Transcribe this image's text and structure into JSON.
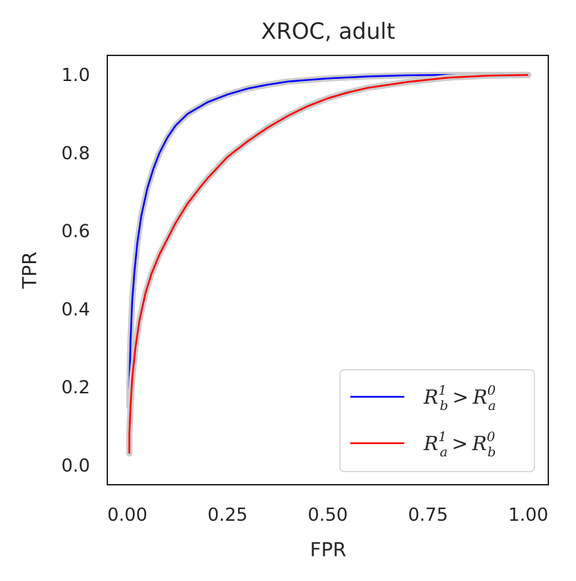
{
  "chart_data": {
    "type": "line",
    "title": "XROC, adult",
    "xlabel": "FPR",
    "ylabel": "TPR",
    "xlim": [
      -0.05,
      1.05
    ],
    "ylim": [
      -0.05,
      1.05
    ],
    "x_ticks": [
      "0.00",
      "0.25",
      "0.50",
      "0.75",
      "1.00"
    ],
    "y_ticks": [
      "0.0",
      "0.2",
      "0.4",
      "0.6",
      "0.8",
      "1.0"
    ],
    "grid": false,
    "legend_position": "lower-right",
    "confidence_band_color": "#cccccc",
    "series": [
      {
        "name": "R_b^1 > R_a^0",
        "label_parts": {
          "R1": "R",
          "sup1": "1",
          "sub1": "b",
          "op": ">",
          "R2": "R",
          "sup2": "0",
          "sub2": "a"
        },
        "color": "#0000ff",
        "x": [
          0.005,
          0.005,
          0.008,
          0.012,
          0.018,
          0.025,
          0.035,
          0.05,
          0.065,
          0.08,
          0.1,
          0.12,
          0.15,
          0.2,
          0.25,
          0.3,
          0.35,
          0.4,
          0.5,
          0.6,
          0.7,
          0.8,
          0.9,
          1.0
        ],
        "y": [
          0.15,
          0.2,
          0.32,
          0.42,
          0.5,
          0.57,
          0.64,
          0.71,
          0.76,
          0.8,
          0.84,
          0.87,
          0.9,
          0.93,
          0.95,
          0.965,
          0.975,
          0.983,
          0.991,
          0.996,
          0.999,
          1.0,
          1.0,
          1.0
        ]
      },
      {
        "name": "R_a^1 > R_b^0",
        "label_parts": {
          "R1": "R",
          "sup1": "1",
          "sub1": "a",
          "op": ">",
          "R2": "R",
          "sup2": "0",
          "sub2": "b"
        },
        "color": "#ff0000",
        "x": [
          0.005,
          0.005,
          0.008,
          0.012,
          0.02,
          0.03,
          0.045,
          0.06,
          0.08,
          0.1,
          0.12,
          0.15,
          0.18,
          0.2,
          0.25,
          0.3,
          0.35,
          0.4,
          0.45,
          0.5,
          0.55,
          0.6,
          0.7,
          0.8,
          0.9,
          1.0
        ],
        "y": [
          0.03,
          0.08,
          0.15,
          0.22,
          0.3,
          0.37,
          0.44,
          0.49,
          0.54,
          0.58,
          0.62,
          0.67,
          0.71,
          0.735,
          0.79,
          0.83,
          0.865,
          0.895,
          0.92,
          0.94,
          0.955,
          0.967,
          0.982,
          0.993,
          0.998,
          1.0
        ]
      }
    ]
  }
}
